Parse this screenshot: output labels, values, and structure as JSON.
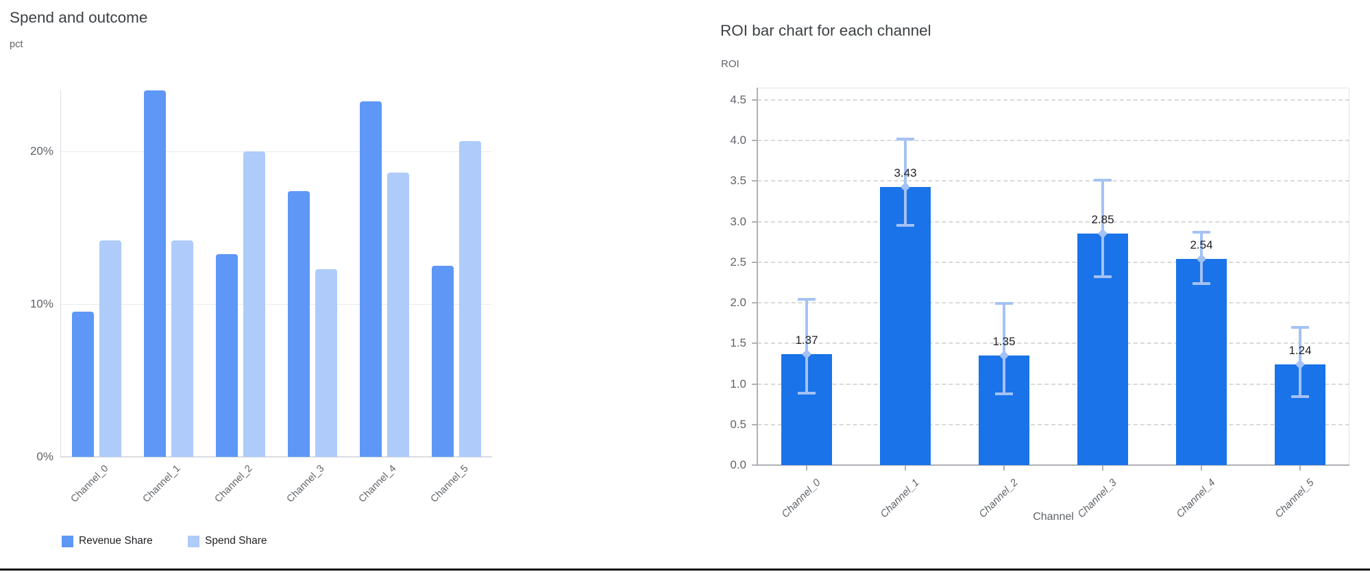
{
  "colors": {
    "revenue_bar": "#5e97f6",
    "spend_bar": "#aecbfa",
    "roi_bar": "#1a73e8",
    "error_bar": "#a4c2f4",
    "title_text": "#3c4043",
    "axis_text": "#5f6368",
    "value_label_text": "#202124",
    "bottom_rule": "#0b0b0b"
  },
  "chart_data": [
    {
      "type": "bar",
      "title": "Spend and outcome",
      "ylabel": "pct",
      "xlabel": "",
      "categories": [
        "Channel_0",
        "Channel_1",
        "Channel_2",
        "Channel_3",
        "Channel_4",
        "Channel_5"
      ],
      "series": [
        {
          "name": "Revenue Share",
          "values": [
            9.5,
            24.0,
            13.3,
            17.4,
            23.3,
            12.5
          ]
        },
        {
          "name": "Spend Share",
          "values": [
            14.2,
            14.2,
            20.0,
            12.3,
            18.6,
            20.7
          ]
        }
      ],
      "y_ticks": [
        0,
        10,
        20
      ],
      "y_tick_labels": [
        "0%",
        "10%",
        "20%"
      ],
      "ylim": [
        0,
        24.05
      ],
      "grid": "horizontal solid",
      "legend_position": "bottom-left",
      "legend": [
        "Revenue Share",
        "Spend Share"
      ]
    },
    {
      "type": "bar",
      "title": "ROI bar chart for each channel",
      "ylabel": "ROI",
      "xlabel": "Channel",
      "categories": [
        "Channel_0",
        "Channel_1",
        "Channel_2",
        "Channel_3",
        "Channel_4",
        "Channel_5"
      ],
      "values": [
        1.37,
        3.43,
        1.35,
        2.85,
        2.54,
        1.24
      ],
      "value_labels": [
        "1.37",
        "3.43",
        "1.35",
        "2.85",
        "2.54",
        "1.24"
      ],
      "error_low": [
        0.89,
        2.95,
        0.88,
        2.32,
        2.24,
        0.84
      ],
      "error_high": [
        2.04,
        4.02,
        1.99,
        3.51,
        2.87,
        1.7
      ],
      "y_ticks": [
        0.0,
        0.5,
        1.0,
        1.5,
        2.0,
        2.5,
        3.0,
        3.5,
        4.0,
        4.5
      ],
      "y_tick_labels": [
        "0.0",
        "0.5",
        "1.0",
        "1.5",
        "2.0",
        "2.5",
        "3.0",
        "3.5",
        "4.0",
        "4.5"
      ],
      "ylim": [
        0,
        4.65
      ],
      "grid": "horizontal dashed",
      "legend_position": "none"
    }
  ]
}
